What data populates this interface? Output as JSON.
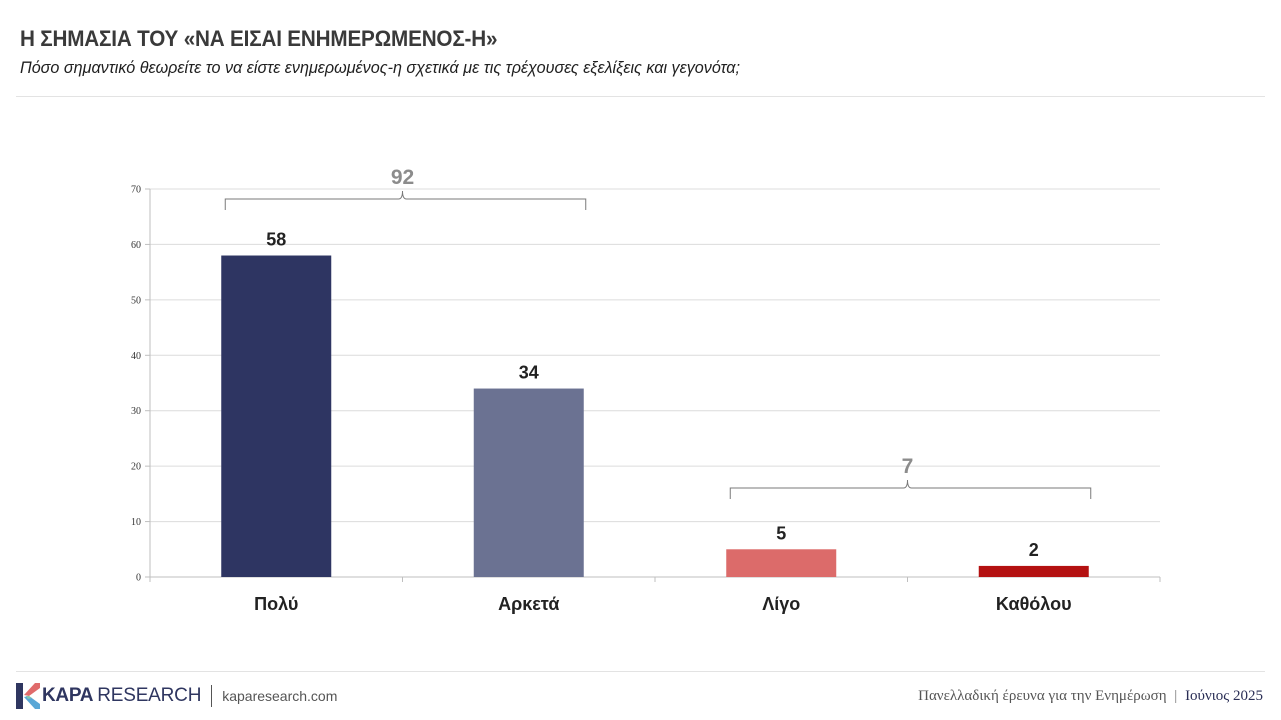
{
  "header": {
    "title": "Η ΣΗΜΑΣΙΑ ΤΟΥ «ΝΑ ΕΙΣΑΙ ΕΝΗΜΕΡΩΜΕΝΟΣ-Η»",
    "subtitle": "Πόσο σημαντικό θεωρείτε το να είστε ενημερωμένος-η σχετικά με τις τρέχουσες εξελίξεις και γεγονότα;"
  },
  "chart_data": {
    "type": "bar",
    "categories": [
      "Πολύ",
      "Αρκετά",
      "Λίγο",
      "Καθόλου"
    ],
    "values": [
      58,
      34,
      5,
      2
    ],
    "colors": [
      "#2e3562",
      "#6b7292",
      "#dc6b6a",
      "#b41111"
    ],
    "title": "",
    "xlabel": "",
    "ylabel": "",
    "ylim": [
      0,
      70
    ],
    "yticks": [
      0,
      10,
      20,
      30,
      40,
      50,
      60,
      70
    ],
    "grid": true,
    "legend": "none",
    "groups": [
      {
        "label": "92",
        "from": 0,
        "to": 1
      },
      {
        "label": "7",
        "from": 2,
        "to": 3
      }
    ]
  },
  "footer": {
    "logo_kapa": "KAPA",
    "logo_research": "RESEARCH",
    "url": "kaparesearch.com",
    "source": "Πανελλαδική έρευνα για την Ενημέρωση",
    "separator": "|",
    "date": "Ιούνιος 2025",
    "logo_colors": [
      "#2f3660",
      "#e06b6b",
      "#5aa7d6",
      "#7fc7b0"
    ]
  }
}
